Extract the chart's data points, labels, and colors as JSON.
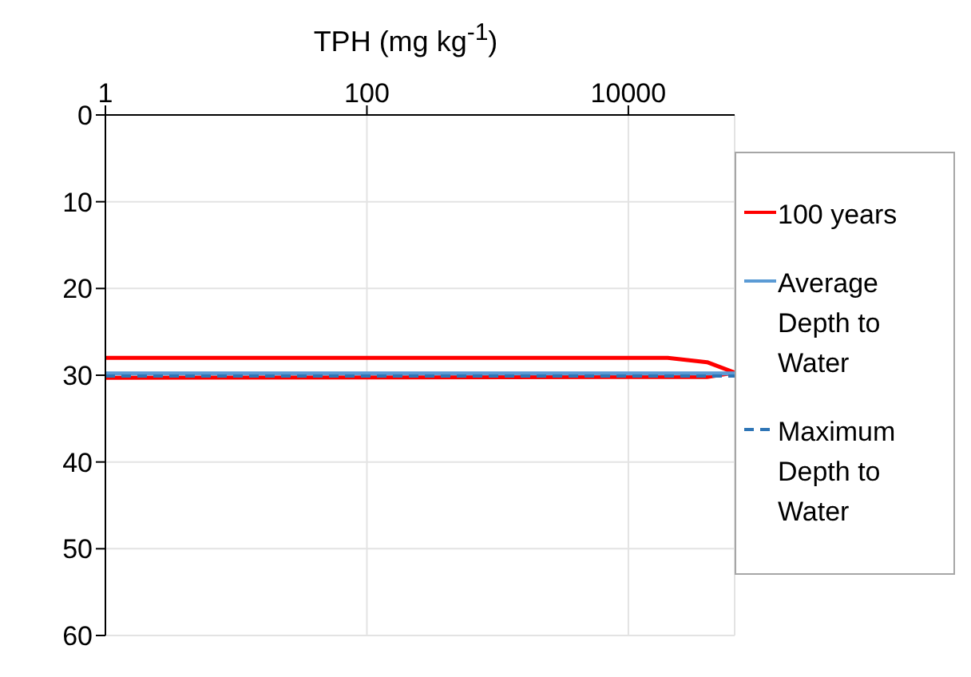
{
  "chart_data": {
    "type": "line",
    "xlabel": "TPH (mg kg$^{-1}$)",
    "log": "x",
    "xlim": [
      1,
      65000
    ],
    "xticks": [
      1,
      100,
      10000
    ],
    "ylim": [
      60,
      0
    ],
    "yticks": [
      0,
      10,
      20,
      30,
      40,
      50,
      60
    ],
    "grid": true,
    "legend": "right",
    "series": [
      {
        "name": "100 years",
        "color": "#ff0000",
        "x": [
          1,
          20000,
          40000,
          65000,
          40000,
          1
        ],
        "values": [
          28,
          28,
          28.5,
          29.7,
          30.2,
          30.3
        ]
      },
      {
        "name": "Average Depth to Water",
        "color": "#5b9bd5",
        "x": [
          1,
          65000
        ],
        "values": [
          29.8,
          29.8
        ]
      },
      {
        "name": "Maximum Depth to Water",
        "color": "#2e75b6",
        "line_style": "dashed",
        "x": [
          1,
          65000
        ],
        "values": [
          30.1,
          30.1
        ]
      }
    ]
  }
}
